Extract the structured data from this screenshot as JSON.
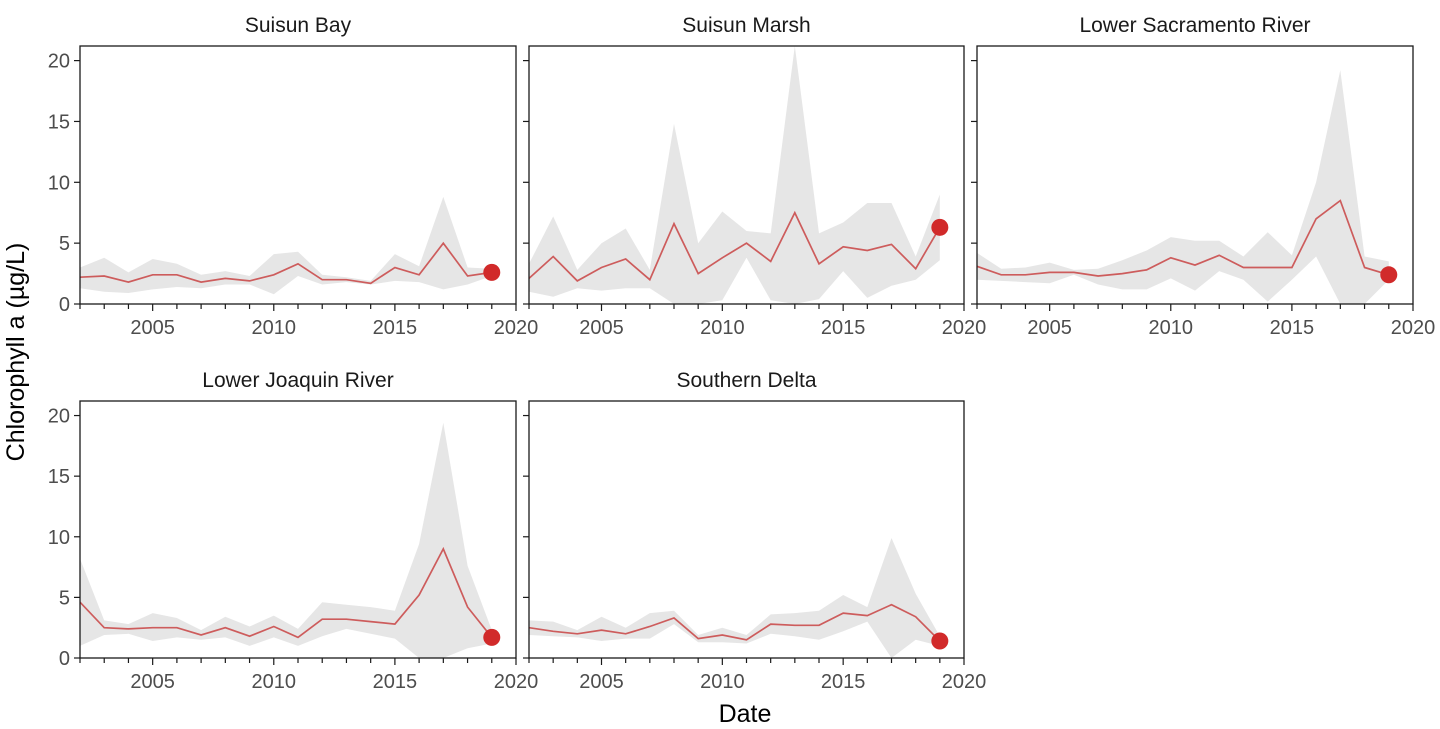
{
  "chart_data": {
    "type": "line",
    "xlabel": "Date",
    "ylabel": "Chlorophyll a (µg/L)",
    "xlim": [
      2002,
      2020
    ],
    "ylim": [
      0,
      21.2
    ],
    "x_ticks": [
      2005,
      2010,
      2015,
      2020
    ],
    "x_tick_labels": [
      "2005",
      "2010",
      "2015",
      "2020"
    ],
    "y_ticks": [
      0,
      5,
      10,
      15,
      20
    ],
    "y_tick_labels": [
      "0",
      "5",
      "10",
      "15",
      "20"
    ],
    "x_minor_ticks": [
      2002,
      2003,
      2004,
      2006,
      2007,
      2008,
      2009,
      2011,
      2012,
      2013,
      2014,
      2016,
      2017,
      2018,
      2019
    ],
    "grid": false,
    "colors": {
      "line": "#cd5c5c",
      "ribbon": "#e6e6e6",
      "point": "#d12a2a"
    },
    "panels": [
      {
        "title": "Suisun Bay",
        "x": [
          2002,
          2003,
          2004,
          2005,
          2006,
          2007,
          2008,
          2009,
          2010,
          2011,
          2012,
          2013,
          2014,
          2015,
          2016,
          2017,
          2018,
          2019
        ],
        "mean": [
          2.2,
          2.3,
          1.8,
          2.4,
          2.4,
          1.8,
          2.1,
          1.9,
          2.4,
          3.3,
          2.0,
          2.0,
          1.7,
          3.0,
          2.4,
          5.0,
          2.3,
          2.6
        ],
        "lower": [
          1.3,
          1.0,
          0.9,
          1.2,
          1.4,
          1.3,
          1.6,
          1.6,
          0.8,
          2.3,
          1.6,
          1.8,
          1.6,
          1.9,
          1.8,
          1.2,
          1.6,
          2.3
        ],
        "upper": [
          3.0,
          3.8,
          2.6,
          3.7,
          3.3,
          2.4,
          2.7,
          2.3,
          4.1,
          4.3,
          2.4,
          2.2,
          1.9,
          4.1,
          3.1,
          8.8,
          3.0,
          2.9
        ],
        "highlight": {
          "x": 2019,
          "y": 2.6
        }
      },
      {
        "title": "Suisun Marsh",
        "x": [
          2002,
          2003,
          2004,
          2005,
          2006,
          2007,
          2008,
          2009,
          2010,
          2011,
          2012,
          2013,
          2014,
          2015,
          2016,
          2017,
          2018,
          2019
        ],
        "mean": [
          2.1,
          3.9,
          1.9,
          3.0,
          3.7,
          2.0,
          6.6,
          2.5,
          3.8,
          5.0,
          3.5,
          7.5,
          3.3,
          4.7,
          4.4,
          4.9,
          2.9,
          6.3
        ],
        "lower": [
          1.0,
          0.6,
          1.3,
          1.1,
          1.3,
          1.3,
          0.0,
          0.0,
          0.3,
          3.8,
          0.3,
          0.0,
          0.4,
          2.7,
          0.5,
          1.5,
          2.0,
          3.6
        ],
        "upper": [
          3.3,
          7.2,
          2.8,
          5.0,
          6.2,
          2.8,
          14.8,
          5.0,
          7.6,
          6.0,
          5.8,
          21.2,
          5.8,
          6.7,
          8.3,
          8.3,
          3.9,
          9.0
        ],
        "highlight": {
          "x": 2019,
          "y": 6.3
        }
      },
      {
        "title": "Lower Sacramento River",
        "x": [
          2002,
          2003,
          2004,
          2005,
          2006,
          2007,
          2008,
          2009,
          2010,
          2011,
          2012,
          2013,
          2014,
          2015,
          2016,
          2017,
          2018,
          2019
        ],
        "mean": [
          3.1,
          2.4,
          2.4,
          2.6,
          2.6,
          2.3,
          2.5,
          2.8,
          3.8,
          3.2,
          4.0,
          3.0,
          3.0,
          3.0,
          7.0,
          8.5,
          3.0,
          2.4
        ],
        "lower": [
          2.0,
          1.9,
          1.8,
          1.7,
          2.4,
          1.6,
          1.2,
          1.2,
          2.1,
          1.1,
          2.7,
          2.0,
          0.2,
          2.0,
          3.9,
          0.0,
          0.0,
          2.0
        ],
        "upper": [
          4.2,
          2.9,
          3.0,
          3.4,
          2.8,
          2.9,
          3.6,
          4.4,
          5.5,
          5.2,
          5.2,
          3.9,
          5.9,
          4.0,
          10.0,
          19.2,
          3.9,
          3.5
        ],
        "highlight": {
          "x": 2019,
          "y": 2.4
        }
      },
      {
        "title": "Lower Joaquin River",
        "x": [
          2002,
          2003,
          2004,
          2005,
          2006,
          2007,
          2008,
          2009,
          2010,
          2011,
          2012,
          2013,
          2014,
          2015,
          2016,
          2017,
          2018,
          2019
        ],
        "mean": [
          4.6,
          2.5,
          2.4,
          2.5,
          2.5,
          1.9,
          2.5,
          1.8,
          2.6,
          1.7,
          3.2,
          3.2,
          3.0,
          2.8,
          5.2,
          9.0,
          4.2,
          1.7
        ],
        "lower": [
          1.0,
          1.9,
          2.0,
          1.4,
          1.7,
          1.5,
          1.7,
          1.0,
          1.7,
          1.0,
          1.8,
          2.4,
          2.0,
          1.6,
          0.0,
          0.0,
          0.8,
          1.2
        ],
        "upper": [
          8.2,
          3.1,
          2.8,
          3.7,
          3.3,
          2.3,
          3.4,
          2.6,
          3.5,
          2.4,
          4.6,
          4.4,
          4.2,
          3.9,
          9.4,
          19.4,
          7.6,
          2.3
        ],
        "highlight": {
          "x": 2019,
          "y": 1.7
        }
      },
      {
        "title": "Southern Delta",
        "x": [
          2002,
          2003,
          2004,
          2005,
          2006,
          2007,
          2008,
          2009,
          2010,
          2011,
          2012,
          2013,
          2014,
          2015,
          2016,
          2017,
          2018,
          2019
        ],
        "mean": [
          2.5,
          2.2,
          2.0,
          2.3,
          2.0,
          2.6,
          3.3,
          1.6,
          1.9,
          1.5,
          2.8,
          2.7,
          2.7,
          3.7,
          3.5,
          4.4,
          3.4,
          1.4
        ],
        "lower": [
          1.9,
          1.8,
          1.7,
          1.4,
          1.6,
          1.6,
          2.8,
          1.3,
          1.3,
          1.2,
          2.0,
          1.8,
          1.5,
          2.2,
          3.0,
          0.0,
          1.5,
          1.0
        ],
        "upper": [
          3.1,
          3.0,
          2.3,
          3.4,
          2.5,
          3.7,
          3.9,
          1.9,
          2.5,
          1.9,
          3.6,
          3.7,
          3.9,
          5.2,
          4.2,
          9.9,
          5.3,
          1.8
        ],
        "highlight": {
          "x": 2019,
          "y": 1.4
        }
      }
    ]
  }
}
